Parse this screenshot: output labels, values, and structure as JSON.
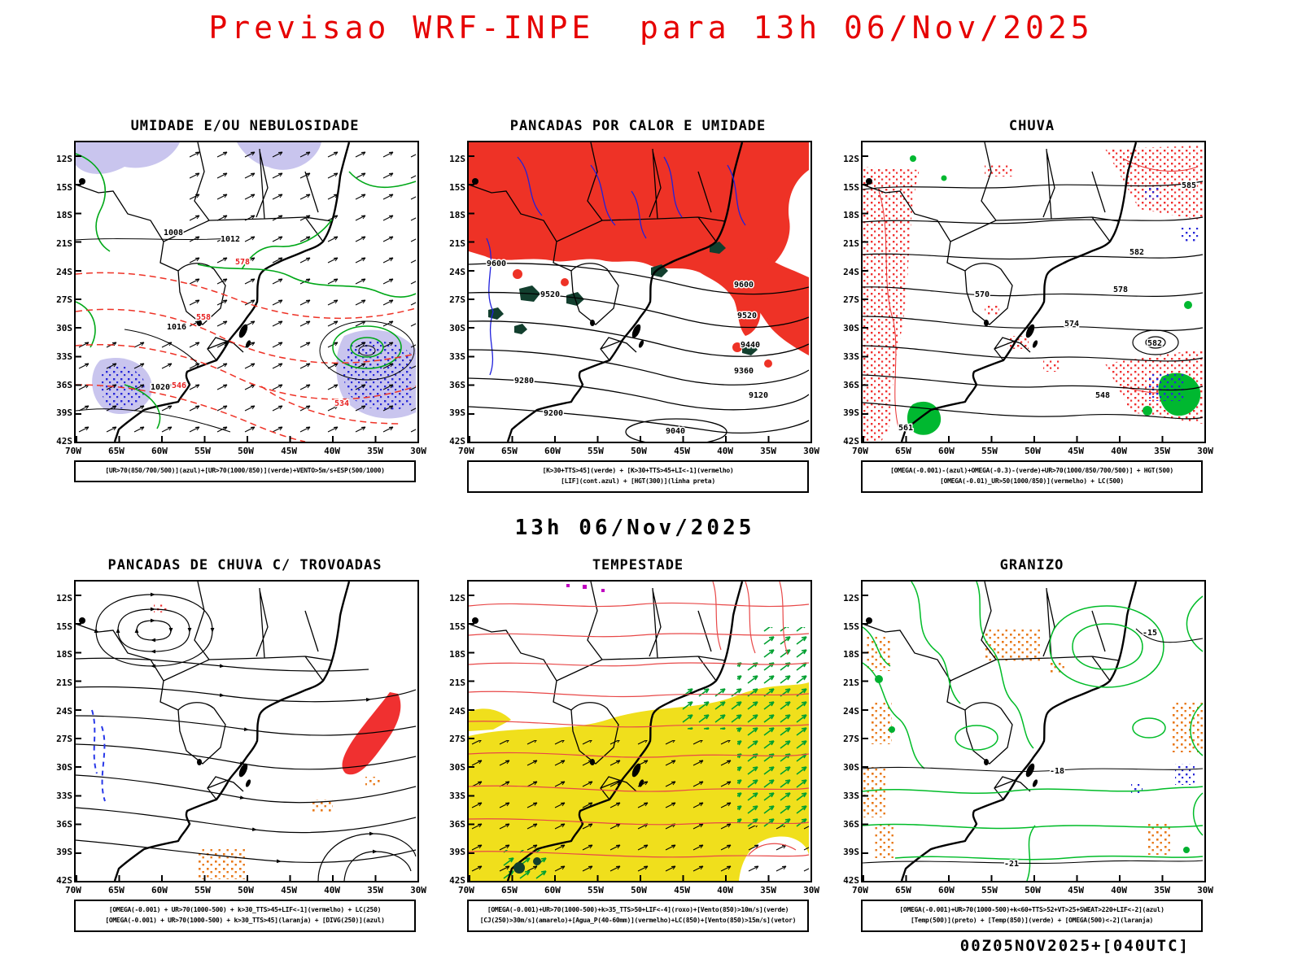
{
  "page": {
    "title": "Previsao WRF-INPE  para 13h 06/Nov/2025",
    "subtitle": "13h 06/Nov/2025",
    "footer": "00Z05NOV2025+[040UTC]"
  },
  "axes": {
    "lat": [
      "12S",
      "15S",
      "18S",
      "21S",
      "24S",
      "27S",
      "30S",
      "33S",
      "36S",
      "39S",
      "42S"
    ],
    "lon": [
      "70W",
      "65W",
      "60W",
      "55W",
      "50W",
      "45W",
      "40W",
      "35W",
      "30W"
    ]
  },
  "panels": [
    {
      "id": "umidade",
      "title": "UMIDADE E/OU NEBULOSIDADE",
      "caption": [
        "[UR>70(850/700/500)](azul)+[UR>70(1000/850)](verde)+VENTO>5m/s+ESP(500/1000)"
      ]
    },
    {
      "id": "pancadas-calor",
      "title": "PANCADAS POR CALOR E UMIDADE",
      "caption": [
        "[K>30+TTS>45](verde) + [K>30+TTS>45+LI<-1](vermelho)",
        "[LIF](cont.azul) + [HGT(300)](linha preta)"
      ]
    },
    {
      "id": "chuva",
      "title": "CHUVA",
      "caption": [
        "[OMEGA(-0.001)-(azul)+OMEGA(-0.3)-(verde)+UR>70(1000/850/700/500)] + HGT(500)",
        "[OMEGA(-0.01)_UR>50(1000/850)](vermelho) + LC(500)"
      ]
    },
    {
      "id": "trovoadas",
      "title": "PANCADAS DE CHUVA C/ TROVOADAS",
      "caption": [
        "[OMEGA(-0.001) + UR>70(1000-500) + k>30_TTS>45+LIF<-1](vermelho) + LC(250)",
        "[OMEGA(-0.001) + UR>70(1000-500) + k>30_TTS>45](laranja) + [DIVG(250)](azul)"
      ]
    },
    {
      "id": "tempestade",
      "title": "TEMPESTADE",
      "caption": [
        "[OMEGA(-0.001)+UR>70(1000-500)+k>35_TTS>50+LIF<-4](roxo)+[Vento(850)>10m/s](verde)",
        "[CJ(250)>30m/s](amarelo)+[Agua_P(40-60mm)](vermelho)+LC(850)+[Vento(850)>15m/s](vetor)"
      ]
    },
    {
      "id": "granizo",
      "title": "GRANIZO",
      "caption": [
        "[OMEGA(-0.001)+UR>70(1000-500)+k<60+TTS>52+VT>25+SWEAT>220+LIF<-2](azul)",
        "[Temp(500)](preto) + [Temp(850)](verde) + [OMEGA(500)<-2](laranja)"
      ]
    }
  ],
  "map_labels": {
    "umidade": [
      "1008",
      "1012",
      "1016",
      "1020",
      "578",
      "558",
      "546",
      "534"
    ],
    "pancadas_calor": [
      "9600",
      "9520",
      "9440",
      "9360",
      "9280",
      "9200",
      "9120",
      "9040"
    ],
    "chuva": [
      "585",
      "582",
      "578",
      "574",
      "570",
      "582",
      "561",
      "548"
    ],
    "granizo": [
      "-15",
      "-18",
      "-21"
    ]
  },
  "colors": {
    "title_red": "#e60000",
    "instability_red": "#ee3226",
    "storm_yellow": "#f0df1c",
    "humidity_green": "#00a818",
    "hail_orange": "#e87818",
    "omega_blue": "#2828d8",
    "cloud_lavender": "#c9c5ee",
    "dark_green": "#123f2e"
  }
}
